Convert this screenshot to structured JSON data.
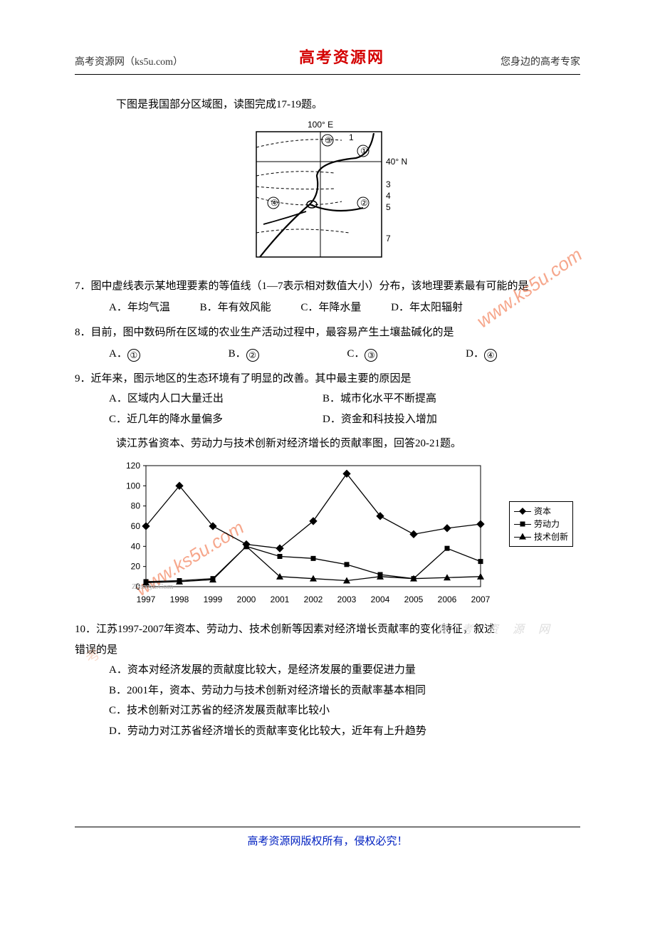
{
  "header": {
    "left": "高考资源网（ks5u.com）",
    "center": "高考资源网",
    "right": "您身边的高考专家"
  },
  "intro17_19": "下图是我国部分区域图，读图完成17-19题。",
  "map": {
    "lon_label": "100° E",
    "lat_label": "40° N",
    "isoline_labels": [
      "1",
      "3",
      "4",
      "5",
      "7"
    ],
    "region_labels": [
      "①",
      "②",
      "③",
      "④"
    ],
    "border_color": "#000000"
  },
  "q7": {
    "stem": "7．图中虚线表示某地理要素的等值线（1—7表示相对数值大小）分布，该地理要素最有可能的是",
    "options": {
      "A": "A．年均气温",
      "B": "B．年有效风能",
      "C": "C．年降水量",
      "D": "D．年太阳辐射"
    }
  },
  "q8": {
    "stem": "8．目前，图中数码所在区域的农业生产活动过程中，最容易产生土壤盐碱化的是",
    "options": {
      "A": "A．",
      "B": "B．",
      "C": "C．",
      "D": "D．"
    },
    "circled": [
      "①",
      "②",
      "③",
      "④"
    ]
  },
  "q9": {
    "stem": "9．近年来，图示地区的生态环境有了明显的改善。其中最主要的原因是",
    "options": {
      "A": "A．区域内人口大量迁出",
      "B": "B．城市化水平不断提高",
      "C": "C．近几年的降水量偏多",
      "D": "D．资金和科技投入增加"
    }
  },
  "chart_intro": "读江苏省资本、劳动力与技术创新对经济增长的贡献率图，回答20-21题。",
  "chart": {
    "type": "line",
    "years": [
      "1997",
      "1998",
      "1999",
      "2000",
      "2001",
      "2002",
      "2003",
      "2004",
      "2005",
      "2006",
      "2007"
    ],
    "ylim": [
      0,
      120
    ],
    "ytick_step": 20,
    "series": {
      "capital": {
        "label": "资本",
        "marker": "diamond",
        "values": [
          60,
          100,
          60,
          42,
          38,
          65,
          112,
          70,
          52,
          58,
          62
        ]
      },
      "labor": {
        "label": "劳动力",
        "marker": "square",
        "values": [
          5,
          6,
          8,
          40,
          30,
          28,
          22,
          12,
          8,
          38,
          25
        ]
      },
      "innovation": {
        "label": "技术创新",
        "marker": "triangle",
        "values": [
          4,
          5,
          7,
          40,
          10,
          8,
          6,
          10,
          8,
          9,
          10
        ]
      }
    },
    "line_color": "#000000",
    "background_color": "#ffffff",
    "border_color": "#000000",
    "label_fontsize": 12
  },
  "q10": {
    "stem_a": "10．江苏1997-2007年资本、劳动力、技术创新等因素对经济增长贡献率的变化特征，叙述",
    "stem_b": "错误的是",
    "options": {
      "A": "A．资本对经济发展的贡献度比较大，是经济发展的重要促进力量",
      "B": "B．2001年，资本、劳动力与技术创新对经济增长的贡献率基本相同",
      "C": "C．技术创新对江苏省的经济发展贡献率比较小",
      "D": "D．劳动力对江苏省经济增长的贡献率变化比较大，近年有上升趋势"
    }
  },
  "watermarks": {
    "url": "www.ks5u.com",
    "wm_faint": "高  考  资  源  网"
  },
  "credit": "Z§xx§k.Com",
  "footer": "高考资源网版权所有，侵权必究！"
}
